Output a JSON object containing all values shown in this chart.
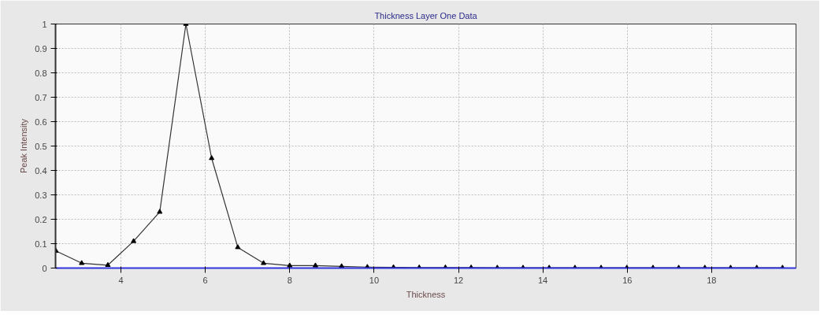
{
  "chart_data": {
    "type": "line",
    "title": "Thickness Layer One Data",
    "xlabel": "Thickness",
    "ylabel": "Peak Intensity",
    "x": [
      2.46,
      3.07,
      3.69,
      4.3,
      4.92,
      5.54,
      6.15,
      6.77,
      7.38,
      8.0,
      8.61,
      9.23,
      9.84,
      10.46,
      11.07,
      11.69,
      12.3,
      12.92,
      13.53,
      14.15,
      14.76,
      15.38,
      15.99,
      16.61,
      17.22,
      17.84,
      18.45,
      19.07,
      19.68
    ],
    "series": [
      {
        "color": "#333333",
        "values": [
          0.07,
          0.02,
          0.012,
          0.11,
          0.23,
          1.0,
          0.45,
          0.085,
          0.02,
          0.01,
          0.01,
          0.007,
          0.004,
          0.003,
          0.002,
          0.002,
          0.002,
          0.001,
          0.001,
          0.001,
          0.001,
          0.001,
          0.001,
          0.001,
          0.001,
          0.001,
          0.001,
          0.001,
          0.001
        ]
      }
    ],
    "xlim": [
      2.45,
      20
    ],
    "ylim": [
      0,
      1
    ],
    "xticks": [
      4,
      6,
      8,
      10,
      12,
      14,
      16,
      18
    ],
    "yticks": [
      0,
      0.1,
      0.2,
      0.3,
      0.4,
      0.5,
      0.6,
      0.7,
      0.8,
      0.9,
      1
    ],
    "grid": true,
    "marker": "triangle",
    "line_style": "solid"
  }
}
